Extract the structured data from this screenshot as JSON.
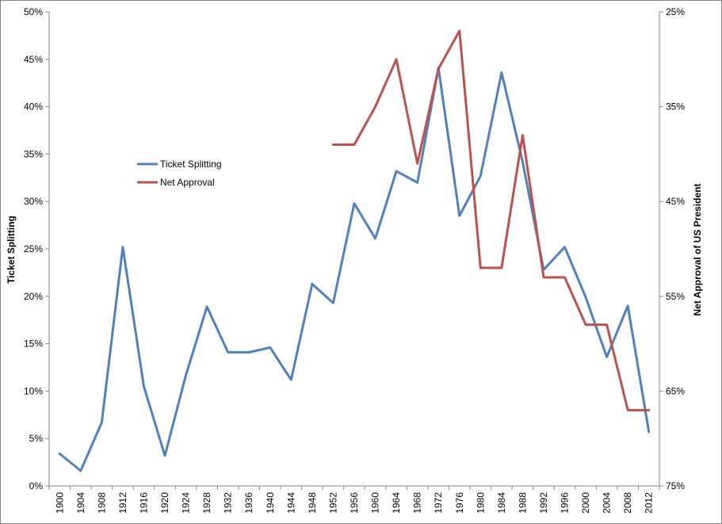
{
  "chart_data": {
    "type": "line",
    "xlabel": "",
    "ylabel_left": "Ticket Splitting",
    "ylabel_right": "Net Approval of US President",
    "x": [
      1900,
      1904,
      1908,
      1912,
      1916,
      1920,
      1924,
      1928,
      1932,
      1936,
      1940,
      1944,
      1948,
      1952,
      1956,
      1960,
      1964,
      1968,
      1972,
      1976,
      1980,
      1984,
      1988,
      1992,
      1996,
      2000,
      2004,
      2008,
      2012
    ],
    "x_tick_labels": [
      "1900",
      "1904",
      "1908",
      "1912",
      "1916",
      "1920",
      "1924",
      "1928",
      "1932",
      "1936",
      "1940",
      "1944",
      "1948",
      "1952",
      "1956",
      "1960",
      "1964",
      "1968",
      "1972",
      "1976",
      "1980",
      "1984",
      "1988",
      "1992",
      "1996",
      "2000",
      "2004",
      "2008",
      "2012"
    ],
    "ylim_left": [
      0,
      50
    ],
    "yticks_left": [
      "0%",
      "5%",
      "10%",
      "15%",
      "20%",
      "25%",
      "30%",
      "35%",
      "40%",
      "45%",
      "50%"
    ],
    "ylim_right": [
      75,
      25
    ],
    "yticks_right": [
      "75%",
      "65%",
      "55%",
      "45%",
      "35%",
      "25%"
    ],
    "grid": false,
    "legend_position": "upper-left",
    "series": [
      {
        "name": "Ticket Splitting",
        "axis": "left",
        "color": "#4F81BD",
        "values": [
          3.4,
          1.6,
          6.7,
          25.2,
          10.5,
          3.2,
          11.7,
          18.9,
          14.1,
          14.1,
          14.6,
          11.2,
          21.3,
          19.3,
          29.8,
          26.1,
          33.2,
          32.0,
          44.1,
          28.5,
          32.7,
          43.6,
          34.2,
          22.8,
          25.2,
          19.9,
          13.6,
          19.0,
          5.7
        ]
      },
      {
        "name": "Net Approval",
        "axis": "right",
        "color": "#C0504D",
        "values": [
          null,
          null,
          null,
          null,
          null,
          null,
          null,
          null,
          null,
          null,
          null,
          null,
          null,
          39,
          39,
          35,
          30,
          41,
          31,
          27,
          52,
          52,
          38,
          53,
          53,
          58,
          58,
          67,
          67
        ]
      }
    ]
  }
}
